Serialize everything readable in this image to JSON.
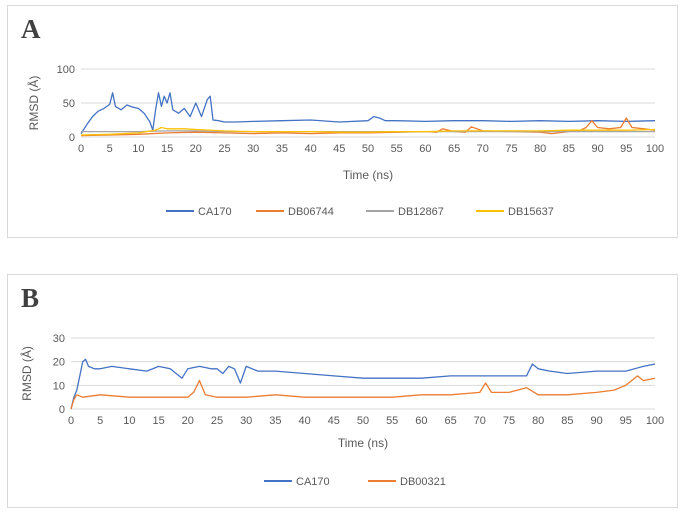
{
  "panels": [
    {
      "label": "A"
    },
    {
      "label": "B"
    }
  ],
  "colors": {
    "CA170": "#4472c4",
    "DB06744": "#ed7d31",
    "DB12867": "#a5a5a5",
    "DB15637": "#ffc000",
    "DB00321": "#ed7d31",
    "grid": "#d9d9d9",
    "text": "#595959"
  },
  "chart_data": [
    {
      "type": "line",
      "title": "",
      "xlabel": "Time (ns)",
      "ylabel": "RMSD (Å)",
      "xlim": [
        0,
        100
      ],
      "ylim": [
        0,
        100
      ],
      "x_ticks": [
        "0",
        "5",
        "10",
        "15",
        "20",
        "25",
        "30",
        "35",
        "40",
        "45",
        "50",
        "55",
        "60",
        "65",
        "70",
        "75",
        "80",
        "85",
        "90",
        "95",
        "100"
      ],
      "y_ticks": [
        "0",
        "50",
        "100"
      ],
      "grid": "horizontal",
      "legend_position": "bottom",
      "series": [
        {
          "name": "CA170",
          "color": "#4472c4",
          "x": [
            0,
            1,
            2,
            3,
            4,
            5,
            5.5,
            6,
            7,
            8,
            9,
            10,
            11,
            12,
            12.5,
            13,
            13.5,
            14,
            14.5,
            15,
            15.5,
            16,
            17,
            18,
            19,
            20,
            21,
            22,
            22.5,
            23,
            24,
            25,
            27,
            30,
            35,
            40,
            45,
            50,
            51,
            52,
            53,
            55,
            60,
            65,
            70,
            75,
            80,
            85,
            90,
            95,
            100
          ],
          "y": [
            5,
            18,
            30,
            38,
            42,
            48,
            65,
            45,
            40,
            47,
            44,
            42,
            35,
            22,
            10,
            40,
            65,
            45,
            60,
            50,
            65,
            40,
            35,
            42,
            30,
            50,
            30,
            55,
            60,
            25,
            24,
            22,
            22,
            23,
            24,
            25,
            22,
            24,
            30,
            28,
            24,
            24,
            23,
            24,
            24,
            23,
            24,
            23,
            24,
            23,
            24
          ]
        },
        {
          "name": "DB06744",
          "color": "#ed7d31",
          "x": [
            0,
            5,
            10,
            15,
            20,
            25,
            30,
            35,
            40,
            45,
            50,
            55,
            60,
            62,
            63,
            65,
            67,
            68,
            70,
            75,
            80,
            82,
            85,
            87,
            88,
            89,
            90,
            92,
            94,
            95,
            96,
            98,
            100
          ],
          "y": [
            2,
            3,
            4,
            6,
            7,
            6,
            5,
            6,
            5,
            6,
            6,
            7,
            8,
            7,
            12,
            8,
            7,
            15,
            9,
            8,
            7,
            5,
            8,
            10,
            14,
            24,
            14,
            12,
            14,
            28,
            14,
            12,
            10
          ]
        },
        {
          "name": "DB12867",
          "color": "#a5a5a5",
          "x": [
            0,
            5,
            10,
            15,
            20,
            25,
            30,
            35,
            40,
            45,
            50,
            55,
            60,
            65,
            70,
            75,
            80,
            85,
            90,
            95,
            100
          ],
          "y": [
            8,
            8,
            8,
            9,
            9,
            8,
            8,
            8,
            8,
            8,
            8,
            8,
            8,
            8,
            8,
            8,
            8,
            8,
            8,
            8,
            8
          ]
        },
        {
          "name": "DB15637",
          "color": "#ffc000",
          "x": [
            0,
            5,
            10,
            13,
            14,
            15,
            18,
            20,
            25,
            30,
            35,
            40,
            45,
            50,
            55,
            60,
            65,
            70,
            75,
            80,
            85,
            90,
            95,
            100
          ],
          "y": [
            3,
            4,
            6,
            10,
            14,
            12,
            12,
            11,
            9,
            8,
            8,
            8,
            7,
            7,
            8,
            8,
            9,
            9,
            9,
            9,
            10,
            10,
            10,
            11
          ]
        }
      ]
    },
    {
      "type": "line",
      "title": "",
      "xlabel": "Time (ns)",
      "ylabel": "RMSD (Å)",
      "xlim": [
        0,
        100
      ],
      "ylim": [
        0,
        30
      ],
      "x_ticks": [
        "0",
        "5",
        "10",
        "15",
        "20",
        "25",
        "30",
        "35",
        "40",
        "45",
        "50",
        "55",
        "60",
        "65",
        "70",
        "75",
        "80",
        "85",
        "90",
        "95",
        "100"
      ],
      "y_ticks": [
        "0",
        "10",
        "20",
        "30"
      ],
      "grid": "horizontal",
      "legend_position": "bottom",
      "series": [
        {
          "name": "CA170",
          "color": "#4472c4",
          "x": [
            0,
            0.5,
            1,
            1.5,
            2,
            2.5,
            3,
            4,
            5,
            7,
            10,
            13,
            15,
            17,
            18,
            19,
            20,
            22,
            24,
            25,
            26,
            27,
            28,
            29,
            30,
            32,
            35,
            40,
            45,
            50,
            55,
            60,
            65,
            70,
            75,
            77,
            78,
            79,
            80,
            82,
            85,
            90,
            95,
            98,
            100
          ],
          "y": [
            0,
            5,
            8,
            14,
            20,
            21,
            18,
            17,
            17,
            18,
            17,
            16,
            18,
            17,
            15,
            13,
            17,
            18,
            17,
            17,
            15,
            18,
            17,
            11,
            18,
            16,
            16,
            15,
            14,
            13,
            13,
            13,
            14,
            14,
            14,
            14,
            14,
            19,
            17,
            16,
            15,
            16,
            16,
            18,
            19
          ]
        },
        {
          "name": "DB00321",
          "color": "#ed7d31",
          "x": [
            0,
            0.5,
            1,
            2,
            5,
            10,
            15,
            20,
            21,
            22,
            23,
            25,
            30,
            35,
            40,
            45,
            50,
            55,
            60,
            65,
            70,
            71,
            72,
            75,
            78,
            80,
            85,
            90,
            93,
            95,
            97,
            98,
            100
          ],
          "y": [
            0,
            4,
            6,
            5,
            6,
            5,
            5,
            5,
            7,
            12,
            6,
            5,
            5,
            6,
            5,
            5,
            5,
            5,
            6,
            6,
            7,
            11,
            7,
            7,
            9,
            6,
            6,
            7,
            8,
            10,
            14,
            12,
            13
          ]
        }
      ]
    }
  ]
}
